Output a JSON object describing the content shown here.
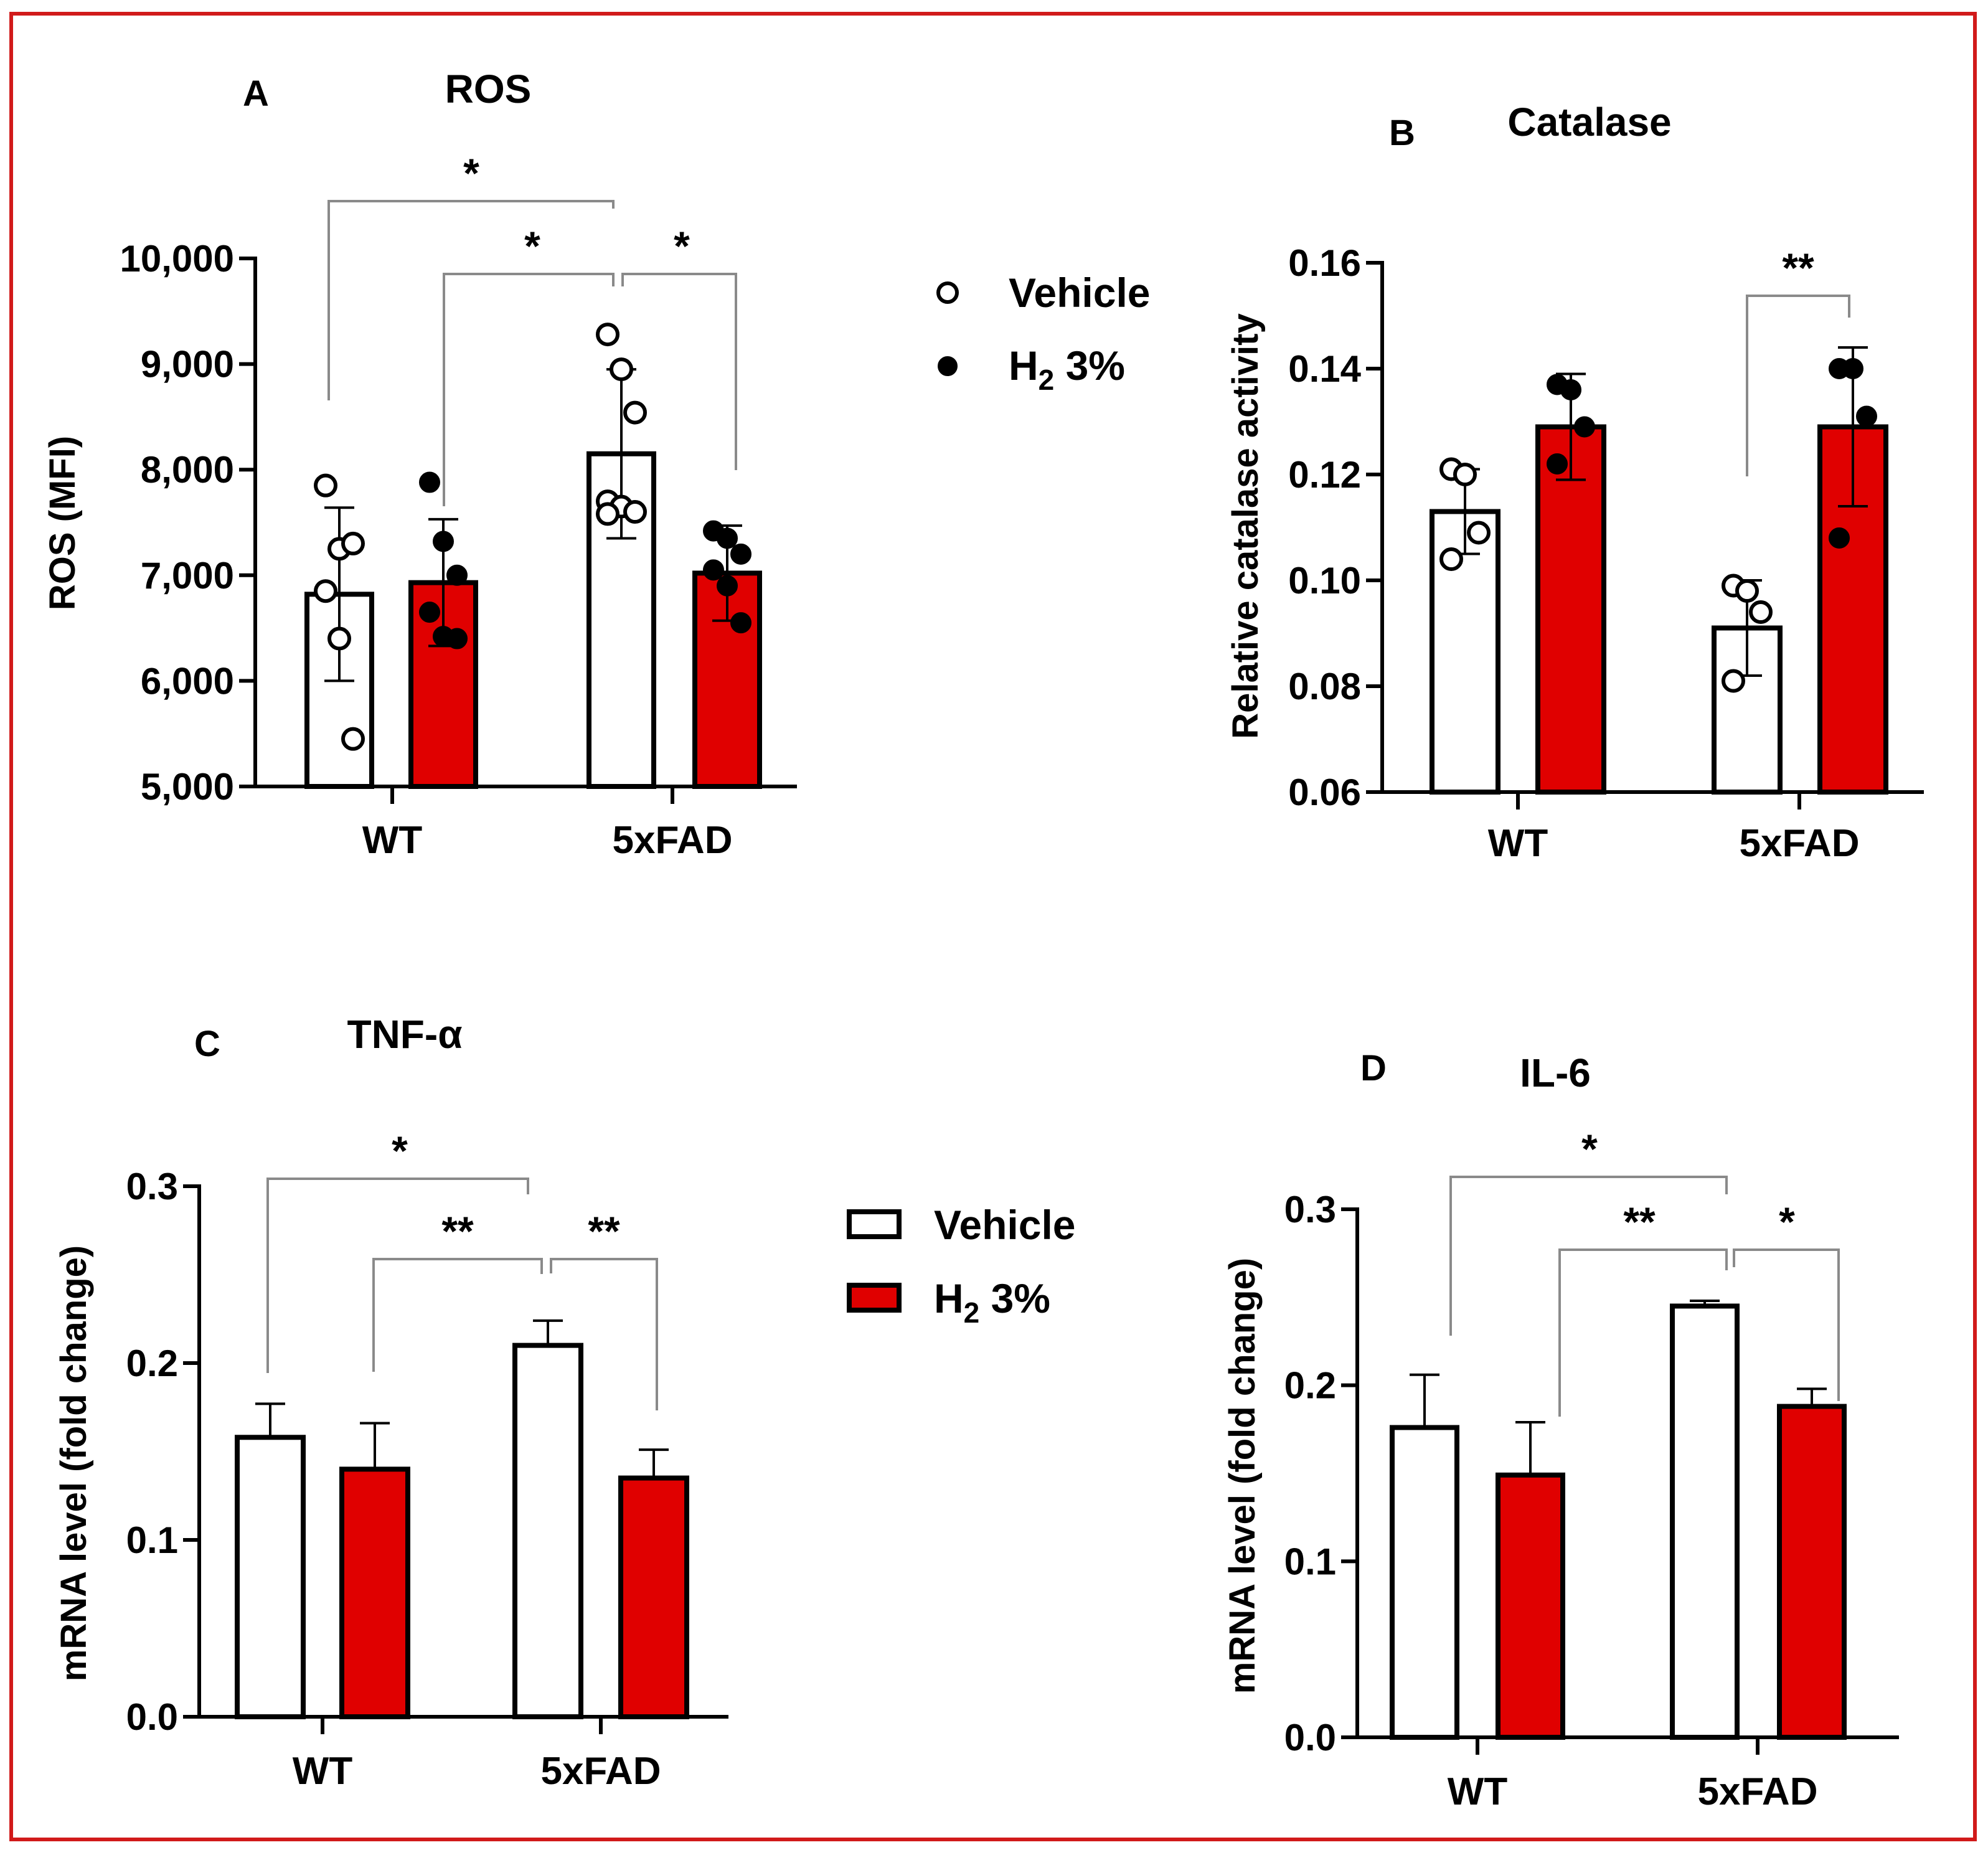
{
  "colors": {
    "vehicle": "#ffffff",
    "h2": "#e00000",
    "frame": "#d11a1a",
    "bracket": "#8a8a8a"
  },
  "legend_top": {
    "items": [
      {
        "label": "Vehicle",
        "marker": "open-circle"
      },
      {
        "label": "H",
        "sub": "2",
        "rest": " 3%",
        "marker": "filled-circle"
      }
    ]
  },
  "legend_bottom": {
    "items": [
      {
        "label": "Vehicle",
        "marker": "open-square"
      },
      {
        "label": "H",
        "sub": "2",
        "rest": " 3%",
        "marker": "red-square"
      }
    ]
  },
  "chart_data": [
    {
      "panel": "A",
      "type": "bar",
      "title": "ROS",
      "ylabel": "ROS (MFI)",
      "ylim": [
        5000,
        10000
      ],
      "ticks": [
        5000,
        6000,
        7000,
        8000,
        9000,
        10000
      ],
      "tick_labels": [
        "5,000",
        "6,000",
        "7,000",
        "8,000",
        "9,000",
        "10,000"
      ],
      "categories": [
        "WT",
        "5xFAD"
      ],
      "series": [
        {
          "name": "Vehicle",
          "values": [
            6820,
            8150
          ],
          "errors": [
            820,
            800
          ],
          "points": [
            [
              7850,
              7250,
              7300,
              6850,
              6400,
              5450
            ],
            [
              9280,
              8950,
              8540,
              7700,
              7650,
              7600,
              7580
            ]
          ]
        },
        {
          "name": "H2 3%",
          "values": [
            6930,
            7020
          ],
          "errors": [
            600,
            450
          ],
          "points": [
            [
              7880,
              7320,
              7000,
              6650,
              6420,
              6400
            ],
            [
              7420,
              7350,
              7200,
              7050,
              6900,
              6550
            ]
          ]
        }
      ],
      "significance": [
        {
          "from": [
            0,
            0
          ],
          "to": [
            1,
            0
          ],
          "label": "*"
        },
        {
          "from": [
            0,
            1
          ],
          "to": [
            1,
            0
          ],
          "label": "*"
        },
        {
          "from": [
            1,
            0
          ],
          "to": [
            1,
            1
          ],
          "label": "*"
        }
      ]
    },
    {
      "panel": "B",
      "type": "bar",
      "title": "Catalase",
      "ylabel": "Relative catalase activity",
      "ylim": [
        0.06,
        0.16
      ],
      "ticks": [
        0.06,
        0.08,
        0.1,
        0.12,
        0.14,
        0.16
      ],
      "tick_labels": [
        "0.06",
        "0.08",
        "0.10",
        "0.12",
        "0.14",
        "0.16"
      ],
      "categories": [
        "WT",
        "5xFAD"
      ],
      "series": [
        {
          "name": "Vehicle",
          "values": [
            0.113,
            0.091
          ],
          "errors": [
            0.008,
            0.009
          ],
          "points": [
            [
              0.121,
              0.12,
              0.109,
              0.104
            ],
            [
              0.099,
              0.098,
              0.094,
              0.081
            ]
          ]
        },
        {
          "name": "H2 3%",
          "values": [
            0.129,
            0.129
          ],
          "errors": [
            0.01,
            0.015
          ],
          "points": [
            [
              0.137,
              0.136,
              0.129,
              0.122
            ],
            [
              0.14,
              0.14,
              0.131,
              0.108
            ]
          ]
        }
      ],
      "significance": [
        {
          "from": [
            1,
            0
          ],
          "to": [
            1,
            1
          ],
          "label": "**"
        }
      ]
    },
    {
      "panel": "C",
      "type": "bar",
      "title": "TNF-α",
      "ylabel": "mRNA level (fold change)",
      "ylim": [
        0,
        0.3
      ],
      "ticks": [
        0,
        0.1,
        0.2,
        0.3
      ],
      "tick_labels": [
        "0.0",
        "0.1",
        "0.2",
        "0.3"
      ],
      "categories": [
        "WT",
        "5xFAD"
      ],
      "series": [
        {
          "name": "Vehicle",
          "values": [
            0.158,
            0.21
          ],
          "errors": [
            0.019,
            0.014
          ]
        },
        {
          "name": "H2 3%",
          "values": [
            0.14,
            0.135
          ],
          "errors": [
            0.026,
            0.016
          ]
        }
      ],
      "significance": [
        {
          "from": [
            0,
            0
          ],
          "to": [
            1,
            0
          ],
          "label": "*"
        },
        {
          "from": [
            0,
            1
          ],
          "to": [
            1,
            0
          ],
          "label": "**"
        },
        {
          "from": [
            1,
            0
          ],
          "to": [
            1,
            1
          ],
          "label": "**"
        }
      ]
    },
    {
      "panel": "D",
      "type": "bar",
      "title": "IL-6",
      "ylabel": "mRNA level (fold change)",
      "ylim": [
        0,
        0.3
      ],
      "ticks": [
        0,
        0.1,
        0.2,
        0.3
      ],
      "tick_labels": [
        "0.0",
        "0.1",
        "0.2",
        "0.3"
      ],
      "categories": [
        "WT",
        "5xFAD"
      ],
      "series": [
        {
          "name": "Vehicle",
          "values": [
            0.176,
            0.245
          ],
          "errors": [
            0.03,
            0.003
          ]
        },
        {
          "name": "H2 3%",
          "values": [
            0.149,
            0.188
          ],
          "errors": [
            0.03,
            0.01
          ]
        }
      ],
      "significance": [
        {
          "from": [
            0,
            0
          ],
          "to": [
            1,
            0
          ],
          "label": "*"
        },
        {
          "from": [
            0,
            1
          ],
          "to": [
            1,
            0
          ],
          "label": "**"
        },
        {
          "from": [
            1,
            0
          ],
          "to": [
            1,
            1
          ],
          "label": "*"
        }
      ]
    }
  ]
}
